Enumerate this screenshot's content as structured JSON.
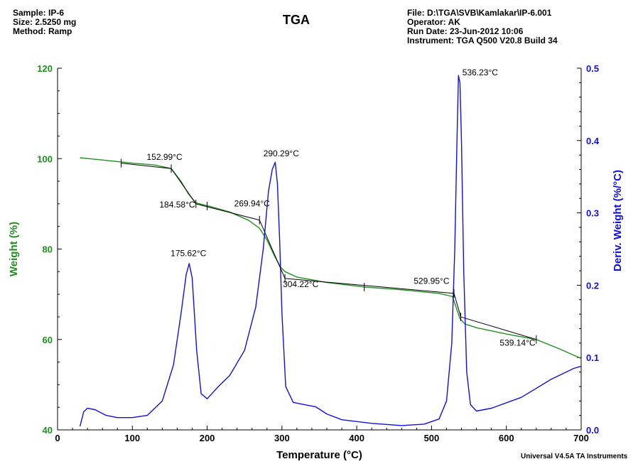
{
  "header": {
    "sample": "Sample: IP-6",
    "size": "Size:  2.5250 mg",
    "method": "Method: Ramp",
    "file": "File: D:\\TGA\\SVB\\Kamlakar\\IP-6.001",
    "operator": "Operator: AK",
    "run_date": "Run Date: 23-Jun-2012 10:06",
    "instrument": "Instrument: TGA Q500 V20.8 Build 34"
  },
  "footer": "Universal V4.5A TA Instruments",
  "colors": {
    "weight": "#1f8f1f",
    "deriv": "#1010e0",
    "tangent": "#000000",
    "axis": "#000000"
  },
  "chart_data": {
    "type": "line",
    "title": "TGA",
    "xlabel": "Temperature (°C)",
    "ylabel": "Weight (%)",
    "y2label": "Deriv. Weight (%/°C)",
    "xlim": [
      0,
      700
    ],
    "ylim": [
      40,
      120
    ],
    "y2lim": [
      0.0,
      0.5
    ],
    "x_ticks": [
      0,
      100,
      200,
      300,
      400,
      500,
      600,
      700
    ],
    "y_ticks": [
      40,
      60,
      80,
      100,
      120
    ],
    "y2_ticks": [
      "0.0",
      "0.1",
      "0.2",
      "0.3",
      "0.4",
      "0.5"
    ],
    "series": [
      {
        "name": "Weight (%)",
        "axis": "left",
        "x": [
          30,
          60,
          100,
          130,
          152,
          165,
          175,
          185,
          200,
          230,
          255,
          270,
          280,
          290,
          298,
          304,
          320,
          360,
          410,
          460,
          510,
          528,
          533,
          538,
          545,
          560,
          600,
          640,
          670,
          700
        ],
        "y": [
          100.2,
          99.7,
          99.0,
          98.6,
          97.8,
          95.0,
          92.2,
          90.2,
          89.6,
          88.2,
          86.4,
          84.6,
          82.0,
          78.5,
          76.0,
          75.0,
          73.8,
          72.6,
          71.6,
          71.0,
          70.2,
          69.5,
          67.0,
          64.6,
          63.4,
          62.6,
          61.2,
          60.0,
          58.0,
          55.8
        ]
      },
      {
        "name": "Deriv. Weight (%/°C)",
        "axis": "right",
        "x": [
          30,
          35,
          40,
          50,
          65,
          80,
          100,
          120,
          140,
          155,
          165,
          172,
          176,
          180,
          186,
          192,
          200,
          215,
          230,
          250,
          265,
          275,
          282,
          287,
          291,
          294,
          297,
          300,
          305,
          315,
          330,
          345,
          360,
          380,
          420,
          460,
          490,
          510,
          520,
          527,
          531,
          534,
          536,
          538,
          540,
          543,
          547,
          552,
          560,
          580,
          620,
          660,
          690,
          700
        ],
        "y": [
          0.005,
          0.025,
          0.03,
          0.028,
          0.02,
          0.017,
          0.017,
          0.02,
          0.04,
          0.09,
          0.16,
          0.215,
          0.23,
          0.21,
          0.11,
          0.05,
          0.043,
          0.06,
          0.075,
          0.11,
          0.17,
          0.25,
          0.33,
          0.36,
          0.37,
          0.34,
          0.26,
          0.16,
          0.06,
          0.038,
          0.035,
          0.032,
          0.022,
          0.014,
          0.009,
          0.006,
          0.008,
          0.015,
          0.04,
          0.12,
          0.25,
          0.4,
          0.49,
          0.48,
          0.4,
          0.22,
          0.08,
          0.035,
          0.026,
          0.03,
          0.045,
          0.07,
          0.085,
          0.088
        ]
      }
    ],
    "tangents": [
      [
        [
          85,
          99.0
        ],
        [
          152,
          97.8
        ]
      ],
      [
        [
          152,
          97.8
        ],
        [
          185,
          90.0
        ]
      ],
      [
        [
          185,
          90.0
        ],
        [
          270,
          86.4
        ]
      ],
      [
        [
          270,
          86.4
        ],
        [
          304,
          73.5
        ]
      ],
      [
        [
          304,
          73.5
        ],
        [
          530,
          70.2
        ]
      ],
      [
        [
          530,
          70.2
        ],
        [
          539,
          65.0
        ]
      ],
      [
        [
          539,
          65.0
        ],
        [
          640,
          60.0
        ]
      ]
    ],
    "tick_marks": [
      {
        "x": 85,
        "y": 99.0
      },
      {
        "x": 152,
        "y": 97.8
      },
      {
        "x": 185,
        "y": 90.0
      },
      {
        "x": 200,
        "y": 89.5
      },
      {
        "x": 270,
        "y": 86.4
      },
      {
        "x": 304,
        "y": 73.5
      },
      {
        "x": 410,
        "y": 71.6
      },
      {
        "x": 530,
        "y": 70.2
      },
      {
        "x": 539,
        "y": 65.0
      },
      {
        "x": 640,
        "y": 60.0
      }
    ],
    "annotations": [
      {
        "text": "152.99°C",
        "x": 143,
        "y": 99.7,
        "axis": "left"
      },
      {
        "text": "184.58°C",
        "x": 160,
        "y": 89.2,
        "axis": "left"
      },
      {
        "text": "269.94°C",
        "x": 260,
        "y": 89.4,
        "axis": "left"
      },
      {
        "text": "304.22°C",
        "x": 325,
        "y": 71.6,
        "axis": "left"
      },
      {
        "text": "529.95°C",
        "x": 500,
        "y": 72.3,
        "axis": "left"
      },
      {
        "text": "539.14°C",
        "x": 615,
        "y": 58.6,
        "axis": "left"
      },
      {
        "text": "290.29°C",
        "x": 299,
        "y": 0.378,
        "axis": "right"
      },
      {
        "text": "175.62°C",
        "x": 175,
        "y": 0.24,
        "axis": "right"
      },
      {
        "text": "536.23°C",
        "x": 565,
        "y": 0.49,
        "axis": "right"
      }
    ]
  }
}
